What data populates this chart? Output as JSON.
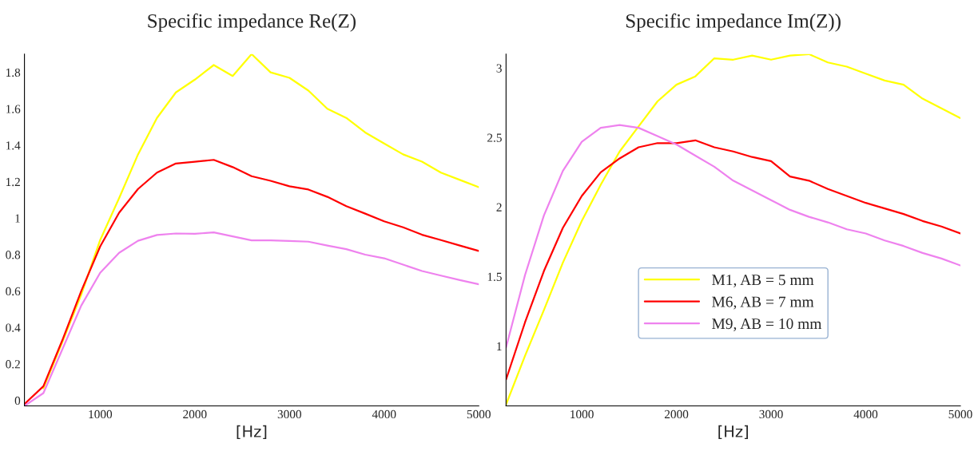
{
  "chart_data": [
    {
      "type": "line",
      "title": "Specific impedance Re(Z)",
      "xlabel": "[Hz]",
      "x": [
        200,
        400,
        600,
        800,
        1000,
        1200,
        1400,
        1600,
        1800,
        2000,
        2200,
        2400,
        2600,
        2800,
        3000,
        3200,
        3400,
        3600,
        3800,
        4000,
        4200,
        4400,
        4600,
        4800,
        5000
      ],
      "xlim": [
        200,
        5000
      ],
      "xticks": [
        1000,
        2000,
        3000,
        4000,
        5000
      ],
      "ylim": [
        -0.03,
        1.9
      ],
      "yticks": [
        0,
        0.2,
        0.4,
        0.6,
        0.8,
        1,
        1.2,
        1.4,
        1.6,
        1.8
      ],
      "grid": false,
      "line_style": "solid",
      "series": [
        {
          "color": "#ffff00",
          "values": [
            null,
            0.066,
            0.32,
            0.58,
            0.88,
            1.11,
            1.35,
            1.55,
            1.69,
            1.76,
            1.84,
            1.78,
            1.9,
            1.8,
            1.77,
            1.7,
            1.6,
            1.55,
            1.47,
            1.41,
            1.35,
            1.31,
            1.25,
            1.21,
            1.17
          ]
        },
        {
          "color": "#ff0000",
          "values": [
            -0.02,
            0.078,
            0.33,
            0.6,
            0.845,
            1.03,
            1.16,
            1.25,
            1.3,
            1.31,
            1.32,
            1.28,
            1.23,
            1.205,
            1.175,
            1.157,
            1.117,
            1.066,
            1.025,
            0.983,
            0.95,
            0.909,
            0.88,
            0.85,
            0.82
          ]
        },
        {
          "color": "#ee82ee",
          "values": [
            -0.03,
            0.04,
            0.28,
            0.52,
            0.7,
            0.81,
            0.876,
            0.908,
            0.916,
            0.914,
            0.922,
            0.9,
            0.878,
            0.878,
            0.875,
            0.871,
            0.85,
            0.83,
            0.8,
            0.78,
            0.745,
            0.71,
            0.685,
            0.66,
            0.637
          ]
        }
      ]
    },
    {
      "type": "line",
      "title": "Specific impedance Im(Z))",
      "xlabel": "[Hz]",
      "x": [
        200,
        400,
        600,
        800,
        1000,
        1200,
        1400,
        1600,
        1800,
        2000,
        2200,
        2400,
        2600,
        2800,
        3000,
        3200,
        3400,
        3600,
        3800,
        4000,
        4200,
        4400,
        4600,
        4800,
        5000
      ],
      "xlim": [
        200,
        5000
      ],
      "xticks": [
        1000,
        2000,
        3000,
        4000,
        5000
      ],
      "ylim": [
        0.57,
        3.1
      ],
      "yticks": [
        1,
        1.5,
        2,
        2.5,
        3
      ],
      "grid": false,
      "line_style": "solid",
      "legend": "bottom",
      "series": [
        {
          "name": "M1, AB = 5 mm",
          "color": "#ffff00",
          "values": [
            0.58,
            0.93,
            1.26,
            1.6,
            1.9,
            2.16,
            2.4,
            2.58,
            2.76,
            2.88,
            2.94,
            3.07,
            3.06,
            3.09,
            3.06,
            3.09,
            3.1,
            3.04,
            3.01,
            2.96,
            2.91,
            2.88,
            2.78,
            2.71,
            2.64
          ]
        },
        {
          "name": "M6, AB = 7 mm",
          "color": "#ff0000",
          "values": [
            0.76,
            1.17,
            1.54,
            1.85,
            2.08,
            2.25,
            2.35,
            2.43,
            2.46,
            2.46,
            2.48,
            2.43,
            2.4,
            2.36,
            2.33,
            2.22,
            2.19,
            2.13,
            2.08,
            2.03,
            1.99,
            1.95,
            1.9,
            1.86,
            1.81
          ]
        },
        {
          "name": "M9, AB = 10 mm",
          "color": "#ee82ee",
          "values": [
            0.99,
            1.51,
            1.94,
            2.26,
            2.47,
            2.57,
            2.59,
            2.57,
            2.51,
            2.45,
            2.37,
            2.29,
            2.19,
            2.12,
            2.05,
            1.98,
            1.93,
            1.89,
            1.84,
            1.81,
            1.76,
            1.72,
            1.67,
            1.63,
            1.58
          ]
        }
      ]
    }
  ]
}
